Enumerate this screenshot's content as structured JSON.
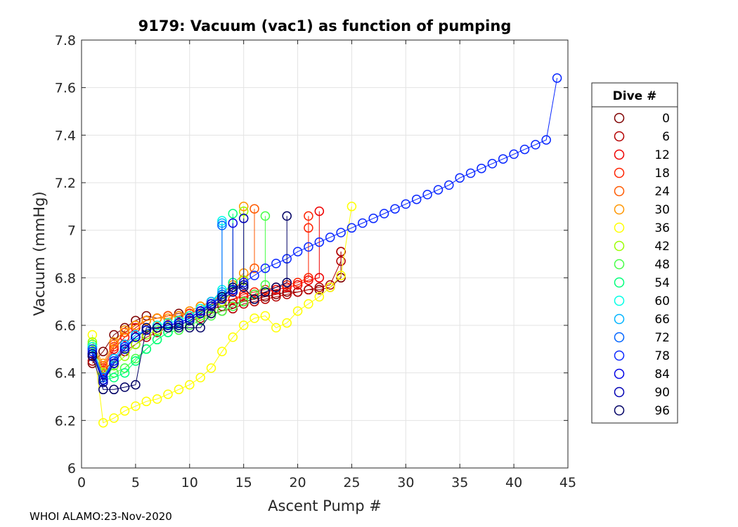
{
  "chart_data": {
    "type": "line",
    "title": "9179: Vacuum (vac1) as function of pumping",
    "xlabel": "Ascent Pump #",
    "ylabel": "Vacuum (mmHg)",
    "xlim": [
      0,
      45
    ],
    "ylim": [
      6,
      7.8
    ],
    "xticks": [
      0,
      5,
      10,
      15,
      20,
      25,
      30,
      35,
      40,
      45
    ],
    "xtick_labels": [
      "0",
      "5",
      "10",
      "15",
      "20",
      "25",
      "30",
      "35",
      "40",
      "45"
    ],
    "yticks": [
      6,
      6.2,
      6.4,
      6.6,
      6.8,
      7,
      7.2,
      7.4,
      7.6,
      7.8
    ],
    "ytick_labels": [
      "6",
      "6.2",
      "6.4",
      "6.6",
      "6.8",
      "7",
      "7.2",
      "7.4",
      "7.6",
      "7.8"
    ],
    "grid": true,
    "legend_title": "Dive #",
    "legend_position": "outside-right",
    "series": [
      {
        "name": "0",
        "color": "#7f0000",
        "x": [
          1,
          2,
          3,
          4,
          5,
          6,
          7,
          8,
          9,
          10,
          11,
          12,
          13,
          14,
          15,
          16,
          17,
          18,
          19,
          20,
          21,
          22,
          23,
          24,
          24
        ],
        "y": [
          6.44,
          6.49,
          6.56,
          6.59,
          6.62,
          6.64,
          6.63,
          6.64,
          6.65,
          6.65,
          6.66,
          6.67,
          6.68,
          6.69,
          6.7,
          6.71,
          6.72,
          6.73,
          6.74,
          6.74,
          6.75,
          6.75,
          6.76,
          6.8,
          6.91
        ]
      },
      {
        "name": "6",
        "color": "#b40000",
        "x": [
          1,
          2,
          3,
          4,
          5,
          6,
          7,
          8,
          9,
          10,
          11,
          12,
          13,
          14,
          15,
          16,
          17,
          18,
          19,
          20,
          21,
          22,
          23,
          24,
          24
        ],
        "y": [
          6.45,
          6.4,
          6.46,
          6.49,
          6.52,
          6.55,
          6.57,
          6.59,
          6.6,
          6.62,
          6.63,
          6.65,
          6.66,
          6.67,
          6.69,
          6.7,
          6.71,
          6.72,
          6.73,
          6.74,
          6.75,
          6.76,
          6.77,
          6.87,
          6.91
        ]
      },
      {
        "name": "12",
        "color": "#ee0000",
        "x": [
          1,
          2,
          3,
          4,
          5,
          6,
          7,
          8,
          9,
          10,
          11,
          12,
          13,
          14,
          15,
          16,
          17,
          18,
          19,
          20,
          21,
          22,
          22
        ],
        "y": [
          6.47,
          6.41,
          6.5,
          6.55,
          6.59,
          6.62,
          6.63,
          6.64,
          6.64,
          6.65,
          6.66,
          6.68,
          6.7,
          6.71,
          6.72,
          6.73,
          6.74,
          6.75,
          6.76,
          6.77,
          6.79,
          6.8,
          7.08
        ]
      },
      {
        "name": "18",
        "color": "#ff2200",
        "x": [
          1,
          2,
          3,
          4,
          5,
          6,
          7,
          8,
          9,
          10,
          11,
          12,
          13,
          14,
          15,
          16,
          17,
          18,
          19,
          20,
          21,
          21,
          21
        ],
        "y": [
          6.5,
          6.42,
          6.51,
          6.57,
          6.6,
          6.62,
          6.63,
          6.64,
          6.64,
          6.65,
          6.67,
          6.69,
          6.7,
          6.71,
          6.73,
          6.74,
          6.75,
          6.76,
          6.77,
          6.78,
          6.8,
          7.01,
          7.06
        ]
      },
      {
        "name": "24",
        "color": "#ff5a00",
        "x": [
          1,
          2,
          3,
          4,
          5,
          6,
          7,
          8,
          9,
          10,
          11,
          12,
          13,
          14,
          15,
          16,
          16
        ],
        "y": [
          6.51,
          6.43,
          6.52,
          6.57,
          6.6,
          6.62,
          6.63,
          6.64,
          6.64,
          6.66,
          6.68,
          6.7,
          6.72,
          6.75,
          6.79,
          6.84,
          7.09
        ]
      },
      {
        "name": "30",
        "color": "#ff9600",
        "x": [
          1,
          2,
          3,
          4,
          5,
          6,
          7,
          8,
          9,
          10,
          11,
          12,
          13,
          14,
          15,
          15
        ],
        "y": [
          6.52,
          6.44,
          6.53,
          6.58,
          6.6,
          6.62,
          6.63,
          6.63,
          6.64,
          6.66,
          6.68,
          6.7,
          6.73,
          6.77,
          6.82,
          7.1
        ]
      },
      {
        "name": "36",
        "color": "#ffff00",
        "x": [
          1,
          2,
          3,
          4,
          5,
          6,
          7,
          8,
          9,
          10,
          11,
          12,
          13,
          14,
          15,
          16,
          17,
          18,
          19,
          20,
          21,
          22,
          23,
          24,
          25
        ],
        "y": [
          6.56,
          6.19,
          6.21,
          6.24,
          6.26,
          6.28,
          6.29,
          6.31,
          6.33,
          6.35,
          6.38,
          6.42,
          6.49,
          6.55,
          6.6,
          6.63,
          6.64,
          6.59,
          6.61,
          6.66,
          6.69,
          6.72,
          6.76,
          6.81,
          7.1
        ]
      },
      {
        "name": "42",
        "color": "#9bff00",
        "x": [
          1,
          2,
          3,
          4,
          5,
          6,
          7,
          8,
          9,
          10,
          11,
          12,
          13,
          14,
          15,
          15
        ],
        "y": [
          6.53,
          6.4,
          6.43,
          6.47,
          6.52,
          6.56,
          6.58,
          6.59,
          6.6,
          6.62,
          6.64,
          6.67,
          6.7,
          6.74,
          6.79,
          7.08
        ]
      },
      {
        "name": "48",
        "color": "#46ff46",
        "x": [
          1,
          2,
          3,
          4,
          5,
          6,
          7,
          8,
          9,
          10,
          11,
          12,
          13,
          14,
          15,
          16,
          17,
          17
        ],
        "y": [
          6.52,
          6.37,
          6.4,
          6.42,
          6.46,
          6.5,
          6.54,
          6.57,
          6.58,
          6.6,
          6.62,
          6.64,
          6.66,
          6.68,
          6.7,
          6.73,
          6.77,
          7.06
        ]
      },
      {
        "name": "54",
        "color": "#00ff7a",
        "x": [
          1,
          2,
          3,
          4,
          5,
          6,
          7,
          8,
          9,
          10,
          11,
          12,
          13,
          14,
          14
        ],
        "y": [
          6.51,
          6.37,
          6.38,
          6.4,
          6.45,
          6.5,
          6.54,
          6.57,
          6.6,
          6.62,
          6.65,
          6.69,
          6.73,
          6.78,
          7.07
        ]
      },
      {
        "name": "60",
        "color": "#00ffe6",
        "x": [
          1,
          2,
          3,
          4,
          5,
          6,
          7,
          8,
          9,
          10,
          11,
          12,
          13,
          13
        ],
        "y": [
          6.51,
          6.38,
          6.46,
          6.52,
          6.56,
          6.58,
          6.6,
          6.61,
          6.62,
          6.64,
          6.67,
          6.7,
          6.75,
          7.04
        ]
      },
      {
        "name": "66",
        "color": "#00b4ff",
        "x": [
          1,
          2,
          3,
          4,
          5,
          6,
          7,
          8,
          9,
          10,
          11,
          12,
          13,
          13
        ],
        "y": [
          6.5,
          6.38,
          6.46,
          6.52,
          6.56,
          6.58,
          6.59,
          6.6,
          6.61,
          6.63,
          6.66,
          6.7,
          6.74,
          7.03
        ]
      },
      {
        "name": "72",
        "color": "#0064ff",
        "x": [
          1,
          2,
          3,
          4,
          5,
          6,
          7,
          8,
          9,
          10,
          11,
          12,
          13,
          13
        ],
        "y": [
          6.5,
          6.38,
          6.45,
          6.51,
          6.55,
          6.58,
          6.59,
          6.6,
          6.61,
          6.63,
          6.66,
          6.69,
          6.73,
          7.02
        ]
      },
      {
        "name": "78",
        "color": "#0a28ff",
        "x": [
          1,
          2,
          3,
          4,
          5,
          6,
          7,
          8,
          9,
          10,
          11,
          12,
          13,
          14,
          15,
          16,
          17,
          18,
          19,
          20,
          21,
          22,
          23,
          24,
          25,
          26,
          27,
          28,
          29,
          30,
          31,
          32,
          33,
          34,
          35,
          36,
          37,
          38,
          39,
          40,
          41,
          42,
          43,
          44
        ],
        "y": [
          6.49,
          6.37,
          6.45,
          6.51,
          6.55,
          6.58,
          6.59,
          6.6,
          6.61,
          6.63,
          6.66,
          6.69,
          6.72,
          6.75,
          6.78,
          6.81,
          6.84,
          6.86,
          6.88,
          6.91,
          6.93,
          6.95,
          6.97,
          6.99,
          7.01,
          7.03,
          7.05,
          7.07,
          7.09,
          7.11,
          7.13,
          7.15,
          7.17,
          7.19,
          7.22,
          7.24,
          7.26,
          7.28,
          7.3,
          7.32,
          7.34,
          7.36,
          7.38,
          7.64
        ]
      },
      {
        "name": "84",
        "color": "#0000e6",
        "x": [
          1,
          2,
          3,
          4,
          5,
          6,
          7,
          8,
          9,
          10,
          11,
          12,
          13,
          14,
          14
        ],
        "y": [
          6.48,
          6.37,
          6.44,
          6.5,
          6.55,
          6.58,
          6.59,
          6.6,
          6.61,
          6.63,
          6.66,
          6.69,
          6.72,
          6.75,
          7.03
        ]
      },
      {
        "name": "90",
        "color": "#0000b4",
        "x": [
          1,
          2,
          3,
          4,
          5,
          6,
          7,
          8,
          9,
          10,
          11,
          12,
          13,
          14,
          15,
          15
        ],
        "y": [
          6.48,
          6.36,
          6.44,
          6.5,
          6.55,
          6.58,
          6.59,
          6.59,
          6.6,
          6.62,
          6.65,
          6.68,
          6.71,
          6.74,
          6.77,
          7.05
        ]
      },
      {
        "name": "96",
        "color": "#000064",
        "x": [
          1,
          2,
          3,
          4,
          5,
          6,
          7,
          8,
          9,
          10,
          11,
          12,
          13,
          14,
          15,
          16,
          17,
          18,
          19,
          19
        ],
        "y": [
          6.47,
          6.33,
          6.33,
          6.34,
          6.35,
          6.59,
          6.59,
          6.59,
          6.59,
          6.59,
          6.59,
          6.65,
          6.72,
          6.76,
          6.76,
          6.71,
          6.74,
          6.76,
          6.78,
          7.06
        ]
      }
    ]
  },
  "footer": "WHOI ALAMO:23-Nov-2020"
}
